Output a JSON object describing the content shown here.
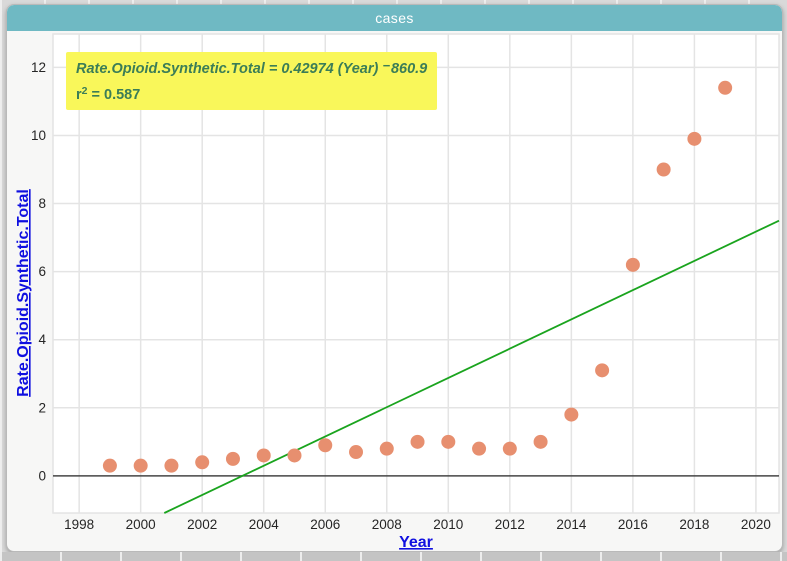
{
  "header": {
    "title": "cases"
  },
  "annotation": {
    "lhs": "Rate.Opioid.Synthetic.Total",
    "equals_coef": " = 0.42974 (",
    "variable": "Year",
    "close_paren": ") ",
    "minus": "−",
    "intercept": "860.9",
    "r_base": "r",
    "r_exponent": "2",
    "r_value": " = 0.587"
  },
  "colors": {
    "header_bg": "#6fb9c3",
    "header_text": "#ffffff",
    "component_bg": "#f7f7f6",
    "plot_bg": "#ffffff",
    "grid": "#e4e4e4",
    "zero_line": "#464646",
    "tick_text": "#262626",
    "axis_link": "#0f0fe0",
    "point": "#e78f6f",
    "regression": "#1aa41e",
    "annotation_bg": "#f9f75a",
    "annotation_text": "#3b7d57"
  },
  "chart_data": {
    "type": "scatter",
    "title": "cases",
    "xlabel": "Year",
    "ylabel": "Rate.Opioid.Synthetic.Total",
    "x": [
      1999,
      2000,
      2001,
      2002,
      2003,
      2004,
      2005,
      2006,
      2007,
      2008,
      2009,
      2010,
      2011,
      2012,
      2013,
      2014,
      2015,
      2016,
      2017,
      2018,
      2019
    ],
    "y": [
      0.3,
      0.3,
      0.3,
      0.4,
      0.5,
      0.6,
      0.6,
      0.9,
      0.7,
      0.8,
      1.0,
      1.0,
      0.8,
      0.8,
      1.0,
      1.8,
      3.1,
      6.2,
      9.0,
      9.9,
      11.4
    ],
    "xticks": [
      1998,
      2000,
      2002,
      2004,
      2006,
      2008,
      2010,
      2012,
      2014,
      2016,
      2018,
      2020
    ],
    "yticks": [
      0,
      2,
      4,
      6,
      8,
      10,
      12
    ],
    "xlim": [
      1997.15,
      2020.75
    ],
    "ylim": [
      -1.09,
      12.98
    ],
    "grid": true,
    "legend_position": "none",
    "zero_line": true,
    "regression": {
      "slope": 0.42974,
      "intercept": -860.9,
      "r2": 0.587,
      "equation_text": "Rate.Opioid.Synthetic.Total = 0.42974 (Year) −860.9",
      "r2_text": "r2 = 0.587"
    }
  }
}
